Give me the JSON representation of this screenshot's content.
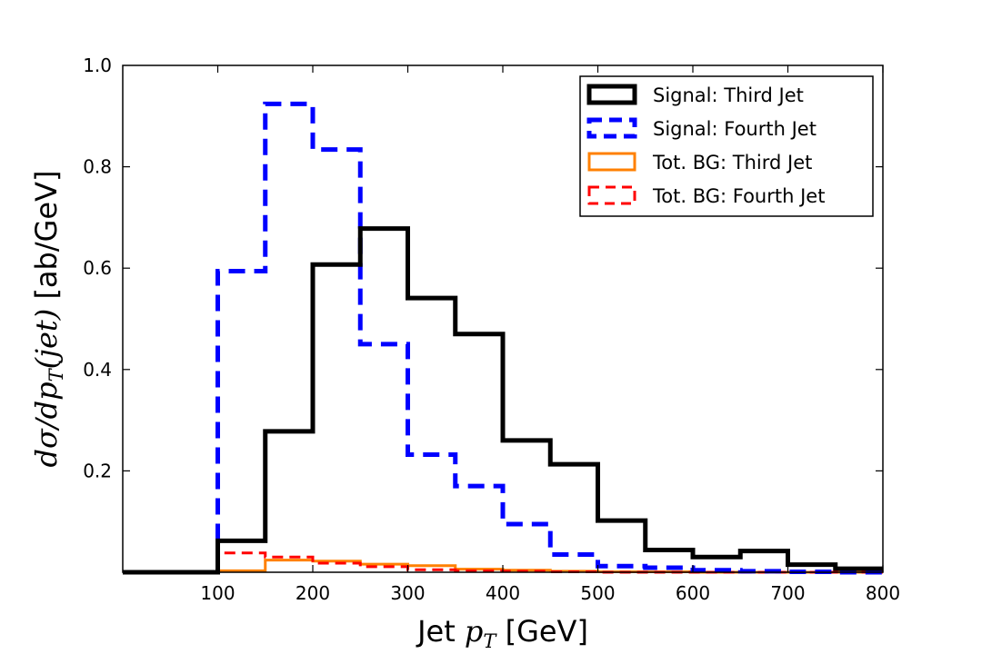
{
  "chart_data": {
    "type": "histogram-step",
    "title": "",
    "xlabel": {
      "prefix": "Jet ",
      "var": "p",
      "sub": "T",
      "suffix": " [GeV]"
    },
    "ylabel": {
      "math": "dσ/dp",
      "sub": "T",
      "math_tail": "(jet)",
      "suffix": " [ab/GeV]"
    },
    "xlim": [
      0,
      800
    ],
    "ylim": [
      0,
      1.0
    ],
    "xticks": [
      100,
      200,
      300,
      400,
      500,
      600,
      700,
      800
    ],
    "yticks": [
      0.2,
      0.4,
      0.6,
      0.8
    ],
    "ytick_top": "1.0",
    "xtick_labels": [
      "100",
      "200",
      "300",
      "400",
      "500",
      "600",
      "700",
      "800"
    ],
    "ytick_labels": [
      "0.2",
      "0.4",
      "0.6",
      "0.8"
    ],
    "bin_edges": [
      0,
      50,
      100,
      150,
      200,
      250,
      300,
      350,
      400,
      450,
      500,
      550,
      600,
      650,
      700,
      750,
      800
    ],
    "legend_position": "top-right",
    "series": [
      {
        "name": "Signal: Third Jet",
        "color": "#000000",
        "style": "solid",
        "width": 5,
        "values": [
          0.0,
          0.0,
          0.062,
          0.278,
          0.607,
          0.678,
          0.541,
          0.47,
          0.26,
          0.213,
          0.102,
          0.044,
          0.03,
          0.042,
          0.015,
          0.007
        ]
      },
      {
        "name": "Signal: Fourth Jet",
        "color": "#0000ff",
        "style": "dashed",
        "width": 5,
        "values": [
          0.0,
          0.0,
          0.594,
          0.924,
          0.834,
          0.45,
          0.232,
          0.17,
          0.095,
          0.035,
          0.012,
          0.009,
          0.004,
          0.002,
          0.001,
          0.0
        ]
      },
      {
        "name": "Tot. BG: Third Jet",
        "color": "#ff8000",
        "style": "solid",
        "width": 3,
        "values": [
          0.0,
          0.0,
          0.003,
          0.024,
          0.022,
          0.016,
          0.013,
          0.006,
          0.004,
          0.002,
          0.001,
          0.001,
          0.0,
          0.0,
          0.0,
          0.0
        ]
      },
      {
        "name": "Tot. BG: Fourth Jet",
        "color": "#ff0000",
        "style": "dashed",
        "width": 3,
        "values": [
          0.0,
          0.0,
          0.038,
          0.03,
          0.018,
          0.011,
          0.005,
          0.003,
          0.002,
          0.001,
          0.0,
          0.0,
          0.0,
          0.0,
          0.0,
          0.0
        ]
      }
    ]
  }
}
